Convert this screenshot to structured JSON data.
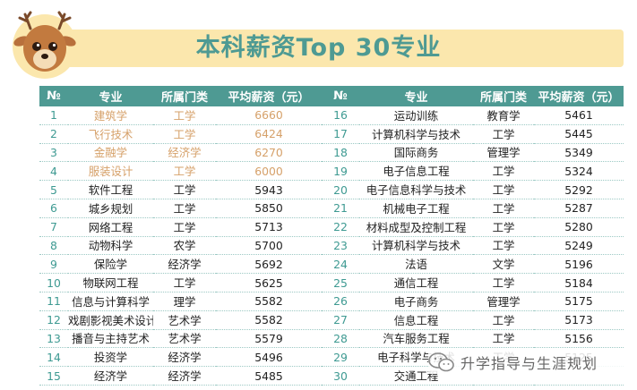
{
  "page": {
    "title": "本科薪资Top 30专业",
    "footer_text": "升学指导与生涯规划",
    "icons": [
      "deer-logo-icon",
      "wechat-icon"
    ],
    "colors": {
      "accent": "#4e9a93",
      "banner": "#fbe7ad",
      "highlight": "#d6a16a",
      "rank": "#3e9a92"
    }
  },
  "table": {
    "headers": [
      "№",
      "专业",
      "所属门类",
      "平均薪资（元）",
      "№",
      "专业",
      "所属门类",
      "平均薪资（元）"
    ],
    "rows": [
      {
        "left": [
          "1",
          "建筑学",
          "工学",
          "6660"
        ],
        "right": [
          "16",
          "运动训练",
          "教育学",
          "5461"
        ]
      },
      {
        "left": [
          "2",
          "飞行技术",
          "工学",
          "6424"
        ],
        "right": [
          "17",
          "计算机科学与技术",
          "工学",
          "5445"
        ]
      },
      {
        "left": [
          "3",
          "金融学",
          "经济学",
          "6270"
        ],
        "right": [
          "18",
          "国际商务",
          "管理学",
          "5349"
        ]
      },
      {
        "left": [
          "4",
          "服装设计",
          "工学",
          "6000"
        ],
        "right": [
          "19",
          "电子信息工程",
          "工学",
          "5324"
        ]
      },
      {
        "left": [
          "5",
          "软件工程",
          "工学",
          "5943"
        ],
        "right": [
          "20",
          "电子信息科学与技术",
          "工学",
          "5292"
        ]
      },
      {
        "left": [
          "6",
          "城乡规划",
          "工学",
          "5850"
        ],
        "right": [
          "21",
          "机械电子工程",
          "工学",
          "5287"
        ]
      },
      {
        "left": [
          "7",
          "网络工程",
          "工学",
          "5713"
        ],
        "right": [
          "22",
          "材料成型及控制工程",
          "工学",
          "5280"
        ]
      },
      {
        "left": [
          "8",
          "动物科学",
          "农学",
          "5700"
        ],
        "right": [
          "23",
          "计算机科学与技术",
          "工学",
          "5249"
        ]
      },
      {
        "left": [
          "9",
          "保险学",
          "经济学",
          "5692"
        ],
        "right": [
          "24",
          "法语",
          "文学",
          "5196"
        ]
      },
      {
        "left": [
          "10",
          "物联网工程",
          "工学",
          "5625"
        ],
        "right": [
          "25",
          "通信工程",
          "工学",
          "5184"
        ]
      },
      {
        "left": [
          "11",
          "信息与计算科学",
          "理学",
          "5582"
        ],
        "right": [
          "26",
          "电子商务",
          "管理学",
          "5175"
        ]
      },
      {
        "left": [
          "12",
          "戏剧影视美术设计",
          "艺术学",
          "5582"
        ],
        "right": [
          "27",
          "信息工程",
          "工学",
          "5173"
        ]
      },
      {
        "left": [
          "13",
          "播音与主持艺术",
          "艺术学",
          "5579"
        ],
        "right": [
          "28",
          "汽车服务工程",
          "工学",
          "5156"
        ]
      },
      {
        "left": [
          "14",
          "投资学",
          "经济学",
          "5496"
        ],
        "right": [
          "29",
          "电子科学与技术",
          "工学",
          "5125"
        ]
      },
      {
        "left": [
          "15",
          "经济学",
          "经济学",
          "5485"
        ],
        "right": [
          "30",
          "交通工程",
          "",
          ""
        ]
      }
    ]
  }
}
